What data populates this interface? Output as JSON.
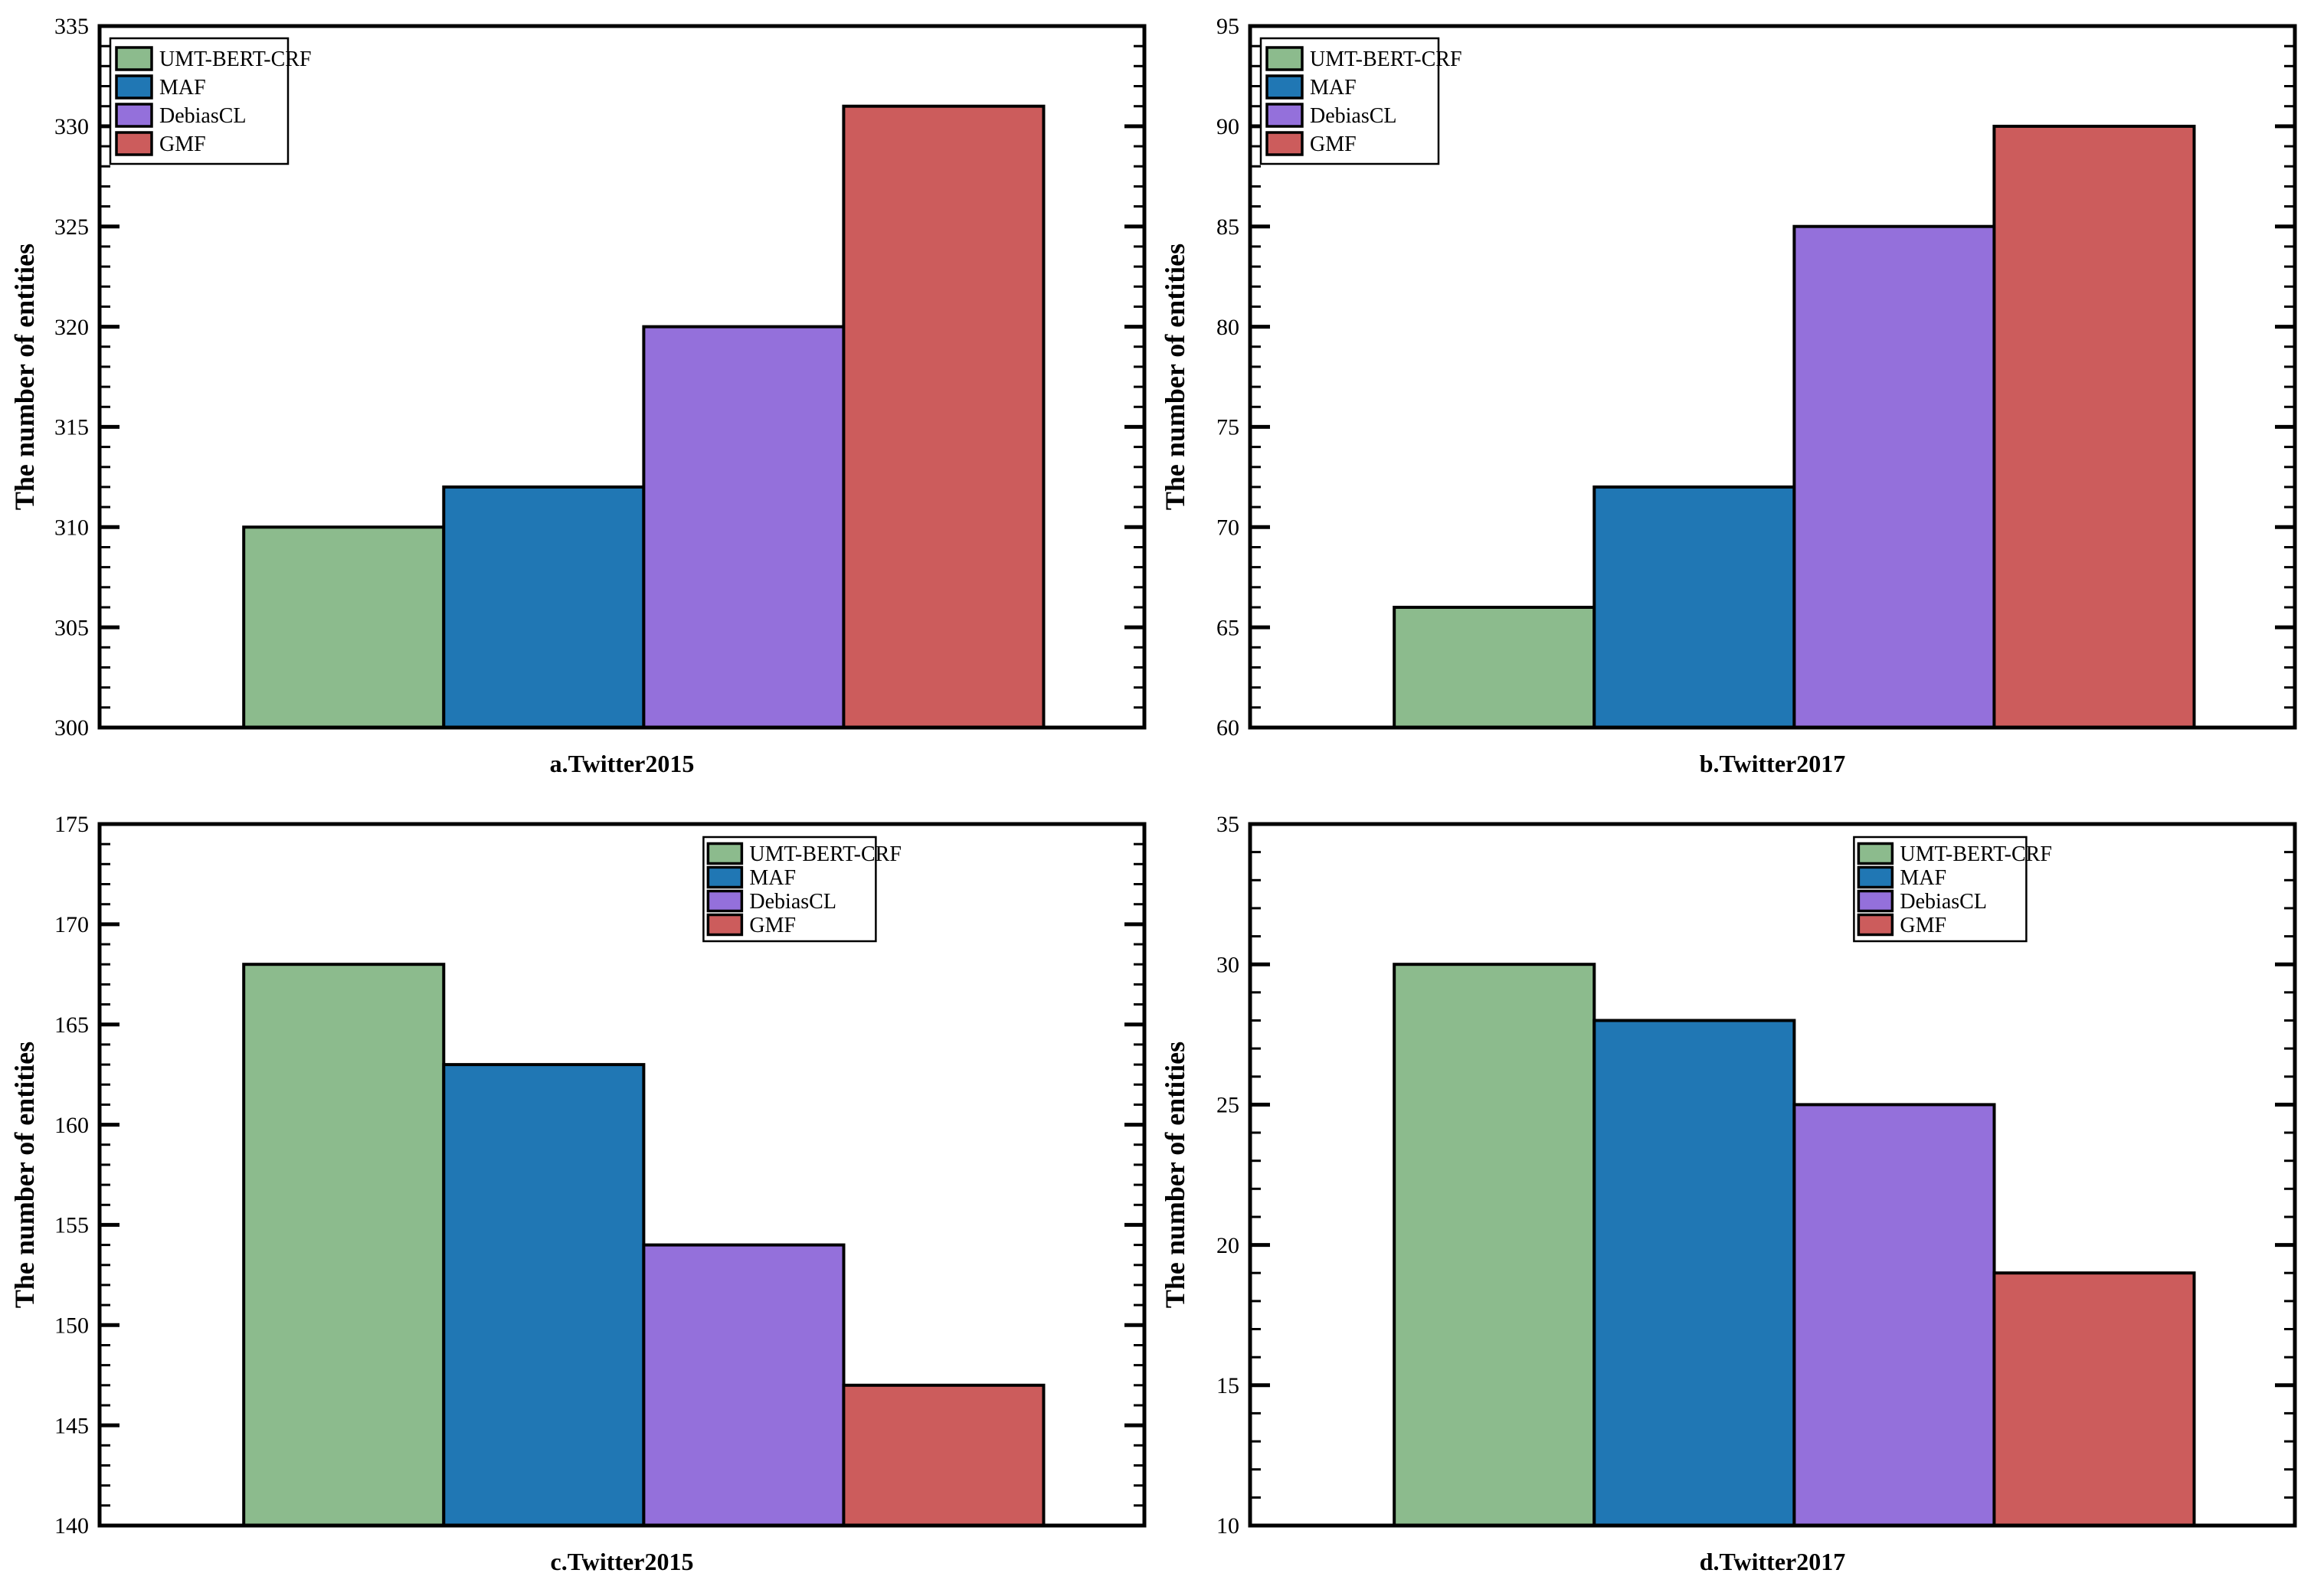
{
  "figure": {
    "background": "#ffffff",
    "axis_color": "#000000",
    "bar_edge_color": "#000000",
    "ylabel": "The number of entities",
    "legend_labels": [
      "UMT-BERT-CRF",
      "MAF",
      "DebiasCL",
      "GMF"
    ],
    "series_colors": {
      "UMT-BERT-CRF": "#8CBB8D",
      "MAF": "#2077B4",
      "DebiasCL": "#9470DB",
      "GMF": "#CC5C5C"
    }
  },
  "chart_data": [
    {
      "type": "bar",
      "title": "a.Twitter2015",
      "xlabel": "a.Twitter2015",
      "ylabel": "The number of entities",
      "categories": [
        "UMT-BERT-CRF",
        "MAF",
        "DebiasCL",
        "GMF"
      ],
      "values": [
        310,
        312,
        320,
        331
      ],
      "ylim": [
        300,
        335
      ],
      "ytick_interval": 5,
      "yminor_interval": 1,
      "ytick_labels": [
        "300",
        "305",
        "310",
        "315",
        "320",
        "325",
        "330",
        "335"
      ],
      "grid": false,
      "legend_position": "upper left",
      "bar_colors": [
        "#8CBB8D",
        "#2077B4",
        "#9470DB",
        "#CC5C5C"
      ]
    },
    {
      "type": "bar",
      "title": "b.Twitter2017",
      "xlabel": "b.Twitter2017",
      "ylabel": "The number of entities",
      "categories": [
        "UMT-BERT-CRF",
        "MAF",
        "DebiasCL",
        "GMF"
      ],
      "values": [
        66,
        72,
        85,
        90
      ],
      "ylim": [
        60,
        95
      ],
      "ytick_interval": 5,
      "yminor_interval": 1,
      "ytick_labels": [
        "60",
        "65",
        "70",
        "75",
        "80",
        "85",
        "90",
        "95"
      ],
      "grid": false,
      "legend_position": "upper left",
      "bar_colors": [
        "#8CBB8D",
        "#2077B4",
        "#9470DB",
        "#CC5C5C"
      ]
    },
    {
      "type": "bar",
      "title": "c.Twitter2015",
      "xlabel": "c.Twitter2015",
      "ylabel": "The number of entities",
      "categories": [
        "UMT-BERT-CRF",
        "MAF",
        "DebiasCL",
        "GMF"
      ],
      "values": [
        168,
        163,
        154,
        147
      ],
      "ylim": [
        140,
        175
      ],
      "ytick_interval": 5,
      "yminor_interval": 1,
      "ytick_labels": [
        "140",
        "145",
        "150",
        "155",
        "160",
        "165",
        "170",
        "175"
      ],
      "grid": false,
      "legend_position": "upper right",
      "bar_colors": [
        "#8CBB8D",
        "#2077B4",
        "#9470DB",
        "#CC5C5C"
      ]
    },
    {
      "type": "bar",
      "title": "d.Twitter2017",
      "xlabel": "d.Twitter2017",
      "ylabel": "The number of entities",
      "categories": [
        "UMT-BERT-CRF",
        "MAF",
        "DebiasCL",
        "GMF"
      ],
      "values": [
        30,
        28,
        25,
        19
      ],
      "ylim": [
        10,
        35
      ],
      "ytick_interval": 5,
      "yminor_interval": 1,
      "ytick_labels": [
        "10",
        "15",
        "20",
        "25",
        "30",
        "35"
      ],
      "grid": false,
      "legend_position": "upper right",
      "bar_colors": [
        "#8CBB8D",
        "#2077B4",
        "#9470DB",
        "#CC5C5C"
      ]
    }
  ]
}
